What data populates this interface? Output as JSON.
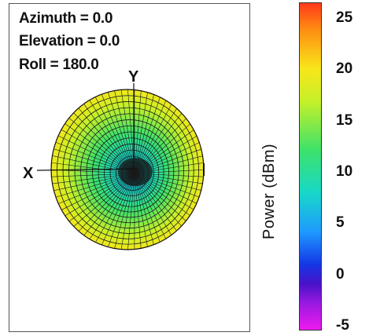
{
  "chart_data": {
    "type": "heatmap",
    "orientation": {
      "azimuth": "Azimuth = 0.0",
      "elevation": "Elevation = 0.0",
      "roll": "Roll = 180.0"
    },
    "axis_labels": {
      "x": "X",
      "y": "Y"
    },
    "colorbar": {
      "label": "Power  (dBm)",
      "range": [
        -5,
        27
      ],
      "ticks": [
        "25",
        "20",
        "15",
        "10",
        "5",
        "0",
        "-5"
      ],
      "tick_values": [
        25,
        20,
        15,
        10,
        5,
        0,
        -5
      ]
    },
    "pattern": {
      "rim_power": 20,
      "mid_power": 13,
      "center_power": 6,
      "grid": true
    }
  }
}
